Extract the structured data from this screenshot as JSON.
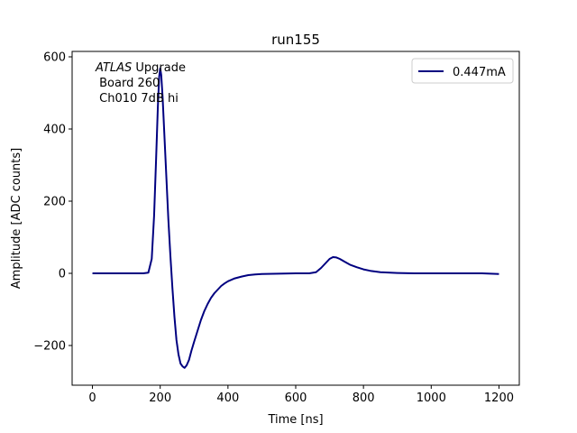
{
  "chart_data": {
    "type": "line",
    "title": "run155",
    "xlabel": "Time [ns]",
    "ylabel": "Amplitude [ADC counts]",
    "xlim": [
      -60,
      1260
    ],
    "ylim": [
      -310,
      615
    ],
    "xticks": [
      0,
      200,
      400,
      600,
      800,
      1000,
      1200
    ],
    "yticks": [
      -200,
      0,
      200,
      400,
      600
    ],
    "xtick_labels": [
      "0",
      "200",
      "400",
      "600",
      "800",
      "1000",
      "1200"
    ],
    "ytick_labels": [
      "−200",
      "0",
      "200",
      "400",
      "600"
    ],
    "grid": false,
    "legend_position": "top-right",
    "annotation": {
      "line1_italic": "ATLAS",
      "line1_rest": " Upgrade",
      "line2": " Board 260",
      "line3": " Ch010 7dB hi"
    },
    "series": [
      {
        "name": "0.447mA",
        "color": "#000080",
        "points": [
          [
            0,
            0
          ],
          [
            50,
            0
          ],
          [
            100,
            0
          ],
          [
            150,
            0
          ],
          [
            165,
            2
          ],
          [
            175,
            40
          ],
          [
            182,
            160
          ],
          [
            188,
            320
          ],
          [
            193,
            460
          ],
          [
            197,
            545
          ],
          [
            200,
            568
          ],
          [
            203,
            550
          ],
          [
            207,
            490
          ],
          [
            212,
            390
          ],
          [
            218,
            270
          ],
          [
            224,
            150
          ],
          [
            230,
            50
          ],
          [
            236,
            -40
          ],
          [
            242,
            -120
          ],
          [
            248,
            -185
          ],
          [
            254,
            -225
          ],
          [
            260,
            -250
          ],
          [
            266,
            -258
          ],
          [
            272,
            -262
          ],
          [
            278,
            -255
          ],
          [
            285,
            -240
          ],
          [
            292,
            -215
          ],
          [
            300,
            -190
          ],
          [
            310,
            -160
          ],
          [
            320,
            -130
          ],
          [
            330,
            -105
          ],
          [
            340,
            -85
          ],
          [
            350,
            -68
          ],
          [
            360,
            -55
          ],
          [
            370,
            -45
          ],
          [
            380,
            -35
          ],
          [
            390,
            -28
          ],
          [
            400,
            -22
          ],
          [
            420,
            -14
          ],
          [
            440,
            -9
          ],
          [
            460,
            -5
          ],
          [
            480,
            -3
          ],
          [
            500,
            -2
          ],
          [
            550,
            -1
          ],
          [
            600,
            0
          ],
          [
            640,
            0
          ],
          [
            660,
            3
          ],
          [
            675,
            15
          ],
          [
            690,
            30
          ],
          [
            700,
            40
          ],
          [
            710,
            45
          ],
          [
            720,
            44
          ],
          [
            730,
            40
          ],
          [
            745,
            32
          ],
          [
            760,
            24
          ],
          [
            780,
            17
          ],
          [
            800,
            11
          ],
          [
            820,
            7
          ],
          [
            850,
            3
          ],
          [
            900,
            1
          ],
          [
            950,
            0
          ],
          [
            1000,
            0
          ],
          [
            1050,
            0
          ],
          [
            1100,
            0
          ],
          [
            1150,
            0
          ],
          [
            1200,
            -2
          ]
        ]
      }
    ]
  }
}
